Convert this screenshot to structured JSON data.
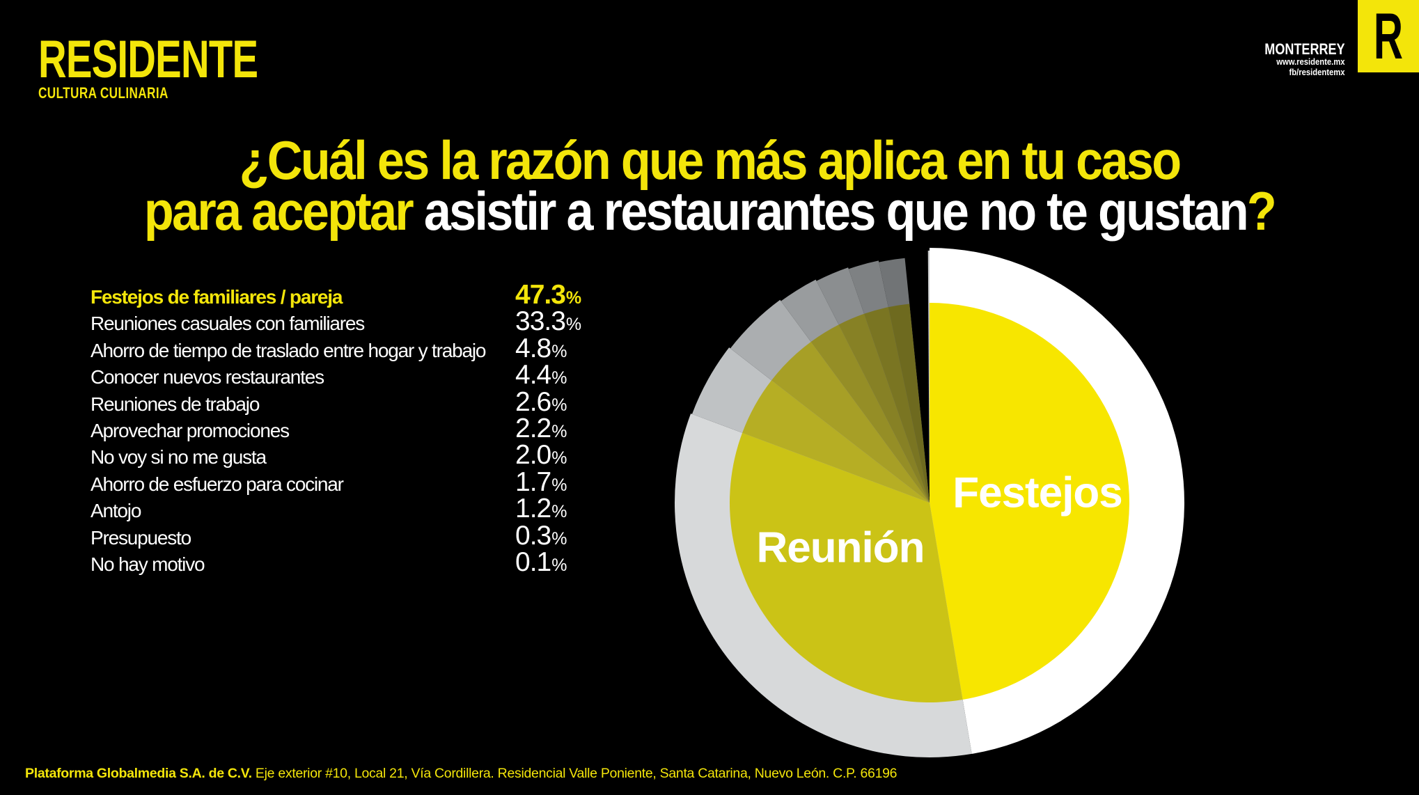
{
  "colors": {
    "background": "#000000",
    "brand_yellow": "#F3E50A",
    "pie_bright_yellow": "#F7E600",
    "pie_olive": "#CBC316",
    "pie_white": "#FFFFFF",
    "pie_light_gray_ring": "#D7D9DA",
    "text_white": "#FFFFFF"
  },
  "header": {
    "brand_name": "RESIDENTE",
    "brand_tagline": "CULTURA CULINARIA",
    "city": "MONTERREY",
    "website": "www.residente.mx",
    "facebook": "fb/residentemx",
    "logo_letter": "R"
  },
  "title": {
    "line1": "¿Cuál es la razón que más aplica en tu caso",
    "line2_highlight": "para aceptar",
    "line2_rest": " asistir a restaurantes que no te gustan",
    "line2_mark": "?"
  },
  "chart_data": {
    "type": "pie",
    "title": "¿Cuál es la razón que más aplica en tu caso para aceptar asistir a restaurantes que no te gustan?",
    "unit": "%",
    "direction": "clockwise",
    "start_angle_deg": 0,
    "legend_position": "left-list",
    "highlight_index": 0,
    "categories": [
      "Festejos de familiares / pareja",
      "Reuniones casuales con familiares",
      "Ahorro de tiempo de traslado entre hogar y trabajo",
      "Conocer nuevos restaurantes",
      "Reuniones de trabajo",
      "Aprovechar promociones",
      "No voy si no me gusta",
      "Ahorro de esfuerzo para cocinar",
      "Antojo",
      "Presupuesto",
      "No hay motivo"
    ],
    "values": [
      47.3,
      33.3,
      4.8,
      4.4,
      2.6,
      2.2,
      2.0,
      1.7,
      1.2,
      0.3,
      0.1
    ],
    "values_display": [
      "47.3",
      "33.3",
      "4.8",
      "4.4",
      "2.6",
      "2.2",
      "2.0",
      "1.7",
      "1.2",
      "0.3",
      "0.1"
    ],
    "on_chart_labels": {
      "festejos": "Festejos",
      "reunion": "Reunión"
    },
    "slice_styles": [
      {
        "outer": "#FFFFFF",
        "inner": "#F7E600",
        "r_outer": 366
      },
      {
        "outer": "#D7D9DA",
        "inner": "#CBC316",
        "r_outer": 366
      },
      {
        "outer": "#BFC2C4",
        "inner": "#B6AE24",
        "r_outer": 364
      },
      {
        "outer": "#ABAEB0",
        "inner": "#A79F26",
        "r_outer": 361.8
      },
      {
        "outer": "#999C9E",
        "inner": "#958E26",
        "r_outer": 359.6
      },
      {
        "outer": "#8B8E90",
        "inner": "#878125",
        "r_outer": 357.4
      },
      {
        "outer": "#7E8183",
        "inner": "#7A7522",
        "r_outer": 355.2
      },
      {
        "outer": "#717476",
        "inner": "#6E6A1F",
        "r_outer": 353
      },
      {
        "outer": null,
        "inner": null,
        "r_outer": 0
      },
      {
        "outer": null,
        "inner": null,
        "r_outer": 0
      },
      {
        "outer": "#C9CBCC",
        "inner": null,
        "r_outer": 362
      }
    ],
    "r_inner": 287
  },
  "footer": {
    "company": "Plataforma Globalmedia S.A. de C.V.",
    "address": " Eje exterior #10, Local 21, Vía Cordillera. Residencial Valle Poniente, Santa Catarina, Nuevo León. C.P. 66196"
  }
}
